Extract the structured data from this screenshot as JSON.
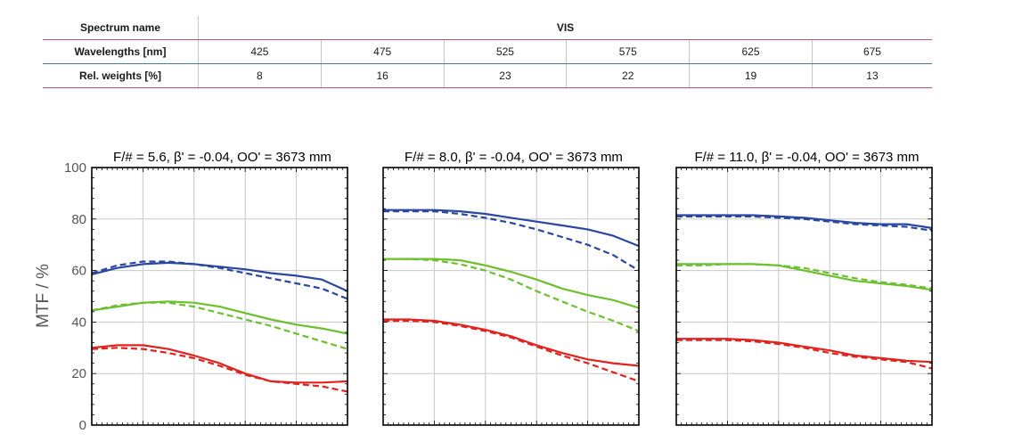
{
  "table": {
    "spectrum_label": "Spectrum name",
    "spectrum_value": "VIS",
    "wavelength_label": "Wavelengths [nm]",
    "wavelengths": [
      "425",
      "475",
      "525",
      "575",
      "625",
      "675"
    ],
    "weights_label": "Rel. weights [%]",
    "weights": [
      "8",
      "16",
      "23",
      "22",
      "19",
      "13"
    ]
  },
  "y_axis": {
    "label": "MTF / %",
    "ticks": [
      "0",
      "20",
      "40",
      "60",
      "80",
      "100"
    ]
  },
  "colors": {
    "blue": "#2a47a0",
    "green": "#6cbf2e",
    "red": "#e0231f",
    "grid": "#c8c8c8",
    "frame": "#000000"
  },
  "chart_data": [
    {
      "type": "line",
      "title": "F/# = 5.6, β' = -0.04, OO' = 3673 mm",
      "ylabel": "MTF / %",
      "xlim": [
        0,
        1
      ],
      "ylim": [
        0,
        100
      ],
      "grid": true,
      "series": [
        {
          "color": "blue",
          "style": "solid",
          "x": [
            0,
            0.1,
            0.2,
            0.3,
            0.4,
            0.5,
            0.6,
            0.7,
            0.8,
            0.9,
            1.0
          ],
          "values": [
            58.5,
            61,
            62.5,
            63,
            62.5,
            61.5,
            60.5,
            59,
            58,
            56.5,
            52
          ]
        },
        {
          "color": "blue",
          "style": "dashed",
          "x": [
            0,
            0.1,
            0.2,
            0.3,
            0.4,
            0.5,
            0.6,
            0.7,
            0.8,
            0.9,
            1.0
          ],
          "values": [
            59,
            62,
            63.5,
            63.5,
            62.5,
            61,
            59,
            57,
            55,
            53,
            49
          ]
        },
        {
          "color": "green",
          "style": "solid",
          "x": [
            0,
            0.1,
            0.2,
            0.3,
            0.4,
            0.5,
            0.6,
            0.7,
            0.8,
            0.9,
            1.0
          ],
          "values": [
            44.5,
            46,
            47.5,
            48,
            47.5,
            46,
            43.5,
            41,
            39,
            37.5,
            35.5
          ]
        },
        {
          "color": "green",
          "style": "dashed",
          "x": [
            0,
            0.1,
            0.2,
            0.3,
            0.4,
            0.5,
            0.6,
            0.7,
            0.8,
            0.9,
            1.0
          ],
          "values": [
            44.5,
            46.5,
            47.5,
            47.5,
            46,
            43.5,
            41,
            38.5,
            35.5,
            32.5,
            29.5
          ]
        },
        {
          "color": "red",
          "style": "solid",
          "x": [
            0,
            0.1,
            0.2,
            0.3,
            0.4,
            0.5,
            0.6,
            0.7,
            0.8,
            0.9,
            1.0
          ],
          "values": [
            30,
            31,
            31,
            29.5,
            27,
            24,
            20,
            17,
            16.5,
            16.5,
            17
          ]
        },
        {
          "color": "red",
          "style": "dashed",
          "x": [
            0,
            0.1,
            0.2,
            0.3,
            0.4,
            0.5,
            0.6,
            0.7,
            0.8,
            0.9,
            1.0
          ],
          "values": [
            29.5,
            30,
            29.5,
            28,
            26,
            23,
            19.5,
            17,
            16,
            15,
            13
          ]
        }
      ]
    },
    {
      "type": "line",
      "title": "F/# = 8.0, β' = -0.04, OO' = 3673 mm",
      "ylabel": "",
      "xlim": [
        0,
        1
      ],
      "ylim": [
        0,
        100
      ],
      "grid": true,
      "series": [
        {
          "color": "blue",
          "style": "solid",
          "x": [
            0,
            0.1,
            0.2,
            0.3,
            0.4,
            0.5,
            0.6,
            0.7,
            0.8,
            0.9,
            1.0
          ],
          "values": [
            83.5,
            83.5,
            83.5,
            83,
            82,
            80.5,
            79,
            77.5,
            76,
            73.5,
            69.5
          ]
        },
        {
          "color": "blue",
          "style": "dashed",
          "x": [
            0,
            0.1,
            0.2,
            0.3,
            0.4,
            0.5,
            0.6,
            0.7,
            0.8,
            0.9,
            1.0
          ],
          "values": [
            83,
            83,
            83,
            82,
            80.5,
            78.5,
            76,
            73,
            70,
            66,
            60
          ]
        },
        {
          "color": "green",
          "style": "solid",
          "x": [
            0,
            0.1,
            0.2,
            0.3,
            0.4,
            0.5,
            0.6,
            0.7,
            0.8,
            0.9,
            1.0
          ],
          "values": [
            64.5,
            64.5,
            64.5,
            64,
            62,
            59.5,
            56.5,
            53,
            50.5,
            48.5,
            45.5
          ]
        },
        {
          "color": "green",
          "style": "dashed",
          "x": [
            0,
            0.1,
            0.2,
            0.3,
            0.4,
            0.5,
            0.6,
            0.7,
            0.8,
            0.9,
            1.0
          ],
          "values": [
            64.5,
            64.5,
            64,
            62.5,
            60,
            56.5,
            52,
            48,
            44,
            40.5,
            36.5
          ]
        },
        {
          "color": "red",
          "style": "solid",
          "x": [
            0,
            0.1,
            0.2,
            0.3,
            0.4,
            0.5,
            0.6,
            0.7,
            0.8,
            0.9,
            1.0
          ],
          "values": [
            41,
            41,
            40.5,
            39,
            37,
            34.5,
            31,
            28,
            25.5,
            24,
            23
          ]
        },
        {
          "color": "red",
          "style": "dashed",
          "x": [
            0,
            0.1,
            0.2,
            0.3,
            0.4,
            0.5,
            0.6,
            0.7,
            0.8,
            0.9,
            1.0
          ],
          "values": [
            40.5,
            40.5,
            40,
            38.5,
            36.5,
            34,
            30.5,
            27,
            24,
            20.5,
            17
          ]
        }
      ]
    },
    {
      "type": "line",
      "title": "F/# = 11.0, β' = -0.04, OO' = 3673 mm",
      "ylabel": "",
      "xlim": [
        0,
        1
      ],
      "ylim": [
        0,
        100
      ],
      "grid": true,
      "series": [
        {
          "color": "blue",
          "style": "solid",
          "x": [
            0,
            0.1,
            0.2,
            0.3,
            0.4,
            0.5,
            0.6,
            0.7,
            0.8,
            0.9,
            1.0
          ],
          "values": [
            81.5,
            81.5,
            81.5,
            81.5,
            81,
            80.5,
            79.5,
            78.5,
            78,
            78,
            76.5
          ]
        },
        {
          "color": "blue",
          "style": "dashed",
          "x": [
            0,
            0.1,
            0.2,
            0.3,
            0.4,
            0.5,
            0.6,
            0.7,
            0.8,
            0.9,
            1.0
          ],
          "values": [
            81,
            81,
            81,
            81,
            80.5,
            80,
            79,
            78,
            77.5,
            77,
            75.5
          ]
        },
        {
          "color": "green",
          "style": "solid",
          "x": [
            0,
            0.1,
            0.2,
            0.3,
            0.4,
            0.5,
            0.6,
            0.7,
            0.8,
            0.9,
            1.0
          ],
          "values": [
            62.5,
            62.5,
            62.5,
            62.5,
            62,
            60,
            58,
            56,
            55,
            54,
            52.5
          ]
        },
        {
          "color": "green",
          "style": "dashed",
          "x": [
            0,
            0.1,
            0.2,
            0.3,
            0.4,
            0.5,
            0.6,
            0.7,
            0.8,
            0.9,
            1.0
          ],
          "values": [
            62,
            62,
            62.5,
            62.5,
            62,
            61,
            59,
            57,
            55.5,
            54.5,
            53
          ]
        },
        {
          "color": "red",
          "style": "solid",
          "x": [
            0,
            0.1,
            0.2,
            0.3,
            0.4,
            0.5,
            0.6,
            0.7,
            0.8,
            0.9,
            1.0
          ],
          "values": [
            33.5,
            33.5,
            33.5,
            33,
            32,
            30.5,
            29,
            27,
            26,
            25,
            24.5
          ]
        },
        {
          "color": "red",
          "style": "dashed",
          "x": [
            0,
            0.1,
            0.2,
            0.3,
            0.4,
            0.5,
            0.6,
            0.7,
            0.8,
            0.9,
            1.0
          ],
          "values": [
            33,
            33,
            33,
            32.5,
            31.5,
            30,
            28,
            26.5,
            25.5,
            24.5,
            22
          ]
        }
      ]
    }
  ]
}
